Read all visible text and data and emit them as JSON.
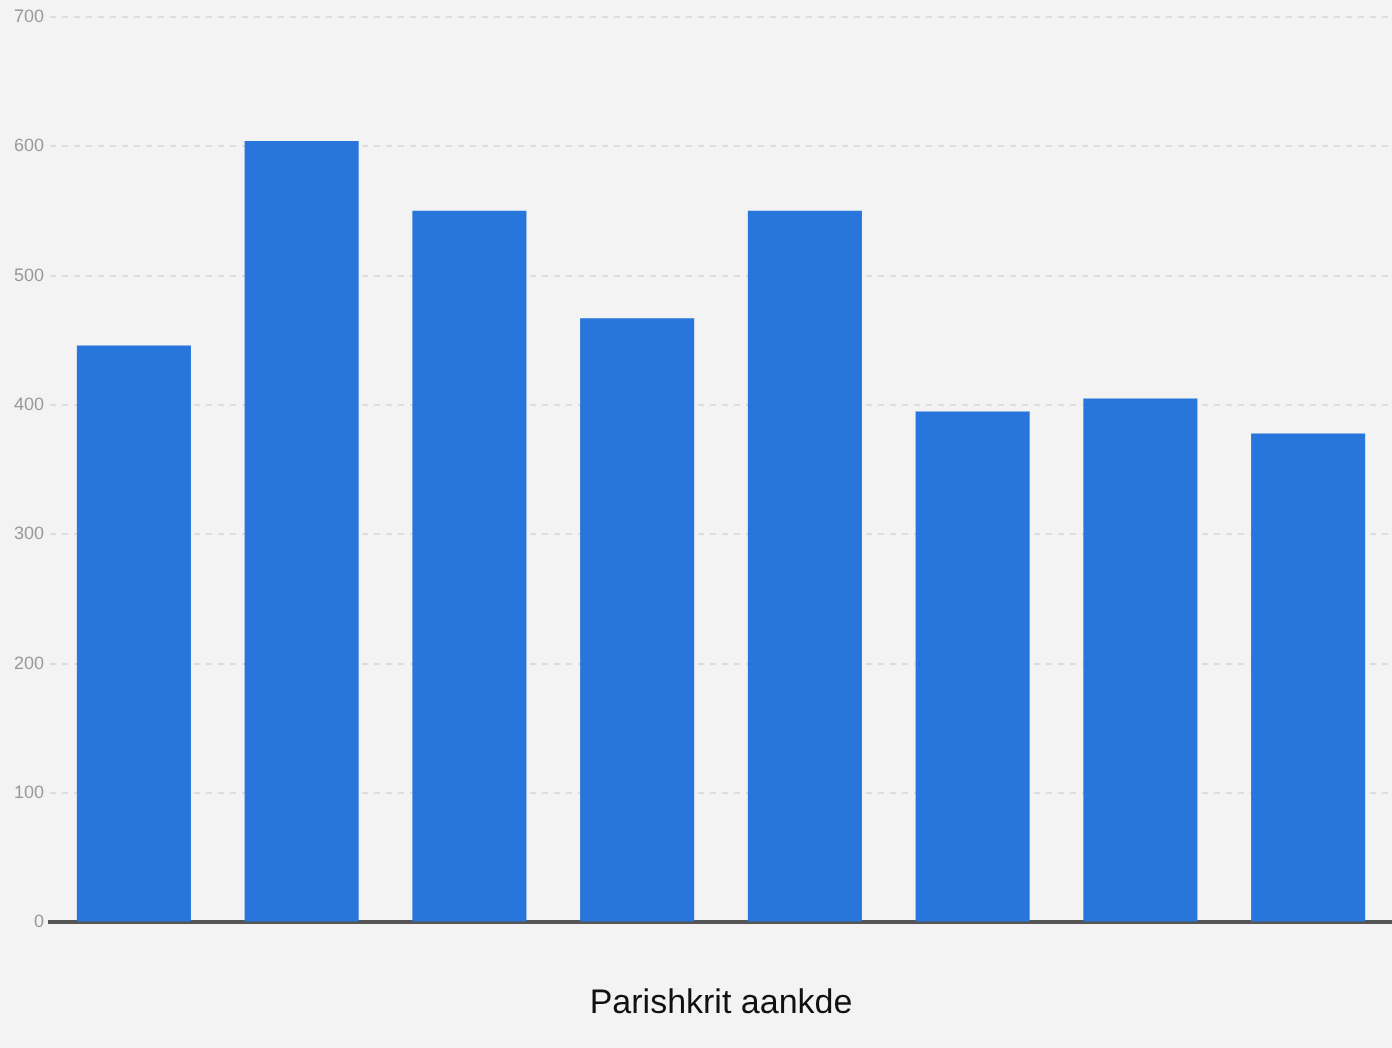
{
  "chart_data": {
    "type": "bar",
    "xlabel": "Parishkrit aankde",
    "categories": [
      null,
      null,
      null,
      null,
      null,
      null,
      null,
      null
    ],
    "values": [
      446,
      604,
      550,
      467,
      550,
      395,
      405,
      378
    ],
    "color": "#2876dc",
    "ylim": [
      0,
      700
    ],
    "yticks": [
      0,
      100,
      200,
      300,
      400,
      500,
      600,
      700
    ],
    "grid": "y"
  }
}
